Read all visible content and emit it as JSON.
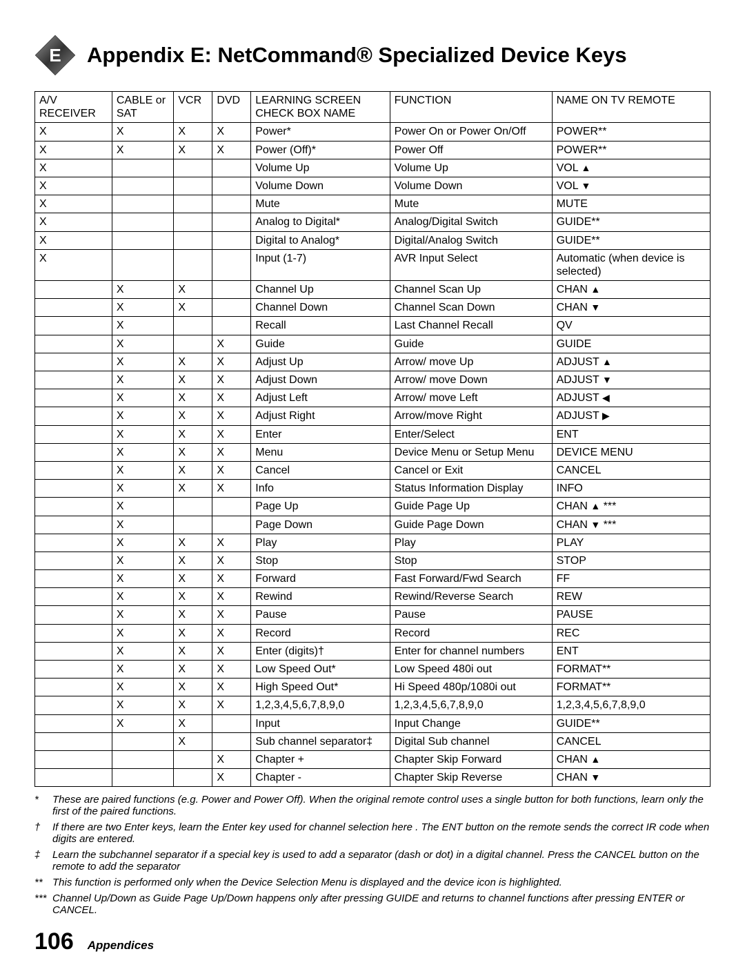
{
  "appendix_letter": "E",
  "title": "Appendix E:  NetCommand® Specialized Device Keys",
  "headers": {
    "c1": "A/V RECEIVER",
    "c2": "CABLE or  SAT",
    "c3": "VCR",
    "c4": "DVD",
    "c5": "LEARNING SCREEN CHECK BOX NAME",
    "c6": "FUNCTION",
    "c7": "NAME ON TV REMOTE"
  },
  "rows": [
    {
      "c": [
        "X",
        "X",
        "X",
        "X",
        "Power*",
        "Power On or Power On/Off",
        "POWER**"
      ]
    },
    {
      "c": [
        "X",
        "X",
        "X",
        "X",
        "Power (Off)*",
        "Power Off",
        "POWER**"
      ]
    },
    {
      "c": [
        "X",
        "",
        "",
        "",
        "Volume Up",
        "Volume Up",
        "VOL ▲"
      ]
    },
    {
      "c": [
        "X",
        "",
        "",
        "",
        "Volume Down",
        "Volume Down",
        "VOL ▼"
      ]
    },
    {
      "c": [
        "X",
        "",
        "",
        "",
        "Mute",
        "Mute",
        "MUTE"
      ]
    },
    {
      "c": [
        "X",
        "",
        "",
        "",
        "Analog to Digital*",
        "Analog/Digital Switch",
        "GUIDE**"
      ]
    },
    {
      "c": [
        "X",
        "",
        "",
        "",
        "Digital to Analog*",
        "Digital/Analog Switch",
        "GUIDE**"
      ]
    },
    {
      "c": [
        "X",
        "",
        "",
        "",
        "Input (1-7)",
        "AVR Input Select",
        "Automatic (when device is selected)"
      ]
    },
    {
      "c": [
        "",
        "X",
        "X",
        "",
        "Channel Up",
        "Channel Scan Up",
        "CHAN ▲"
      ]
    },
    {
      "c": [
        "",
        "X",
        "X",
        "",
        "Channel Down",
        "Channel Scan Down",
        "CHAN ▼"
      ]
    },
    {
      "c": [
        "",
        "X",
        "",
        "",
        "Recall",
        "Last Channel Recall",
        "QV"
      ]
    },
    {
      "c": [
        "",
        "X",
        "",
        "X",
        "Guide",
        "Guide",
        "GUIDE"
      ]
    },
    {
      "c": [
        "",
        "X",
        "X",
        "X",
        "Adjust Up",
        "Arrow/ move Up",
        "ADJUST ▲"
      ]
    },
    {
      "c": [
        "",
        "X",
        "X",
        "X",
        "Adjust Down",
        "Arrow/ move Down",
        "ADJUST ▼"
      ]
    },
    {
      "c": [
        "",
        "X",
        "X",
        "X",
        "Adjust Left",
        "Arrow/ move Left",
        "ADJUST ◀"
      ]
    },
    {
      "c": [
        "",
        "X",
        "X",
        "X",
        "Adjust Right",
        "Arrow/move Right",
        "ADJUST ▶"
      ]
    },
    {
      "c": [
        "",
        "X",
        "X",
        "X",
        "Enter",
        "Enter/Select",
        "ENT"
      ]
    },
    {
      "c": [
        "",
        "X",
        "X",
        "X",
        "Menu",
        "Device Menu or Setup Menu",
        "DEVICE MENU"
      ]
    },
    {
      "c": [
        "",
        "X",
        "X",
        "X",
        "Cancel",
        "Cancel or Exit",
        "CANCEL"
      ]
    },
    {
      "c": [
        "",
        "X",
        "X",
        "X",
        "Info",
        "Status Information Display",
        "INFO"
      ]
    },
    {
      "c": [
        "",
        "X",
        "",
        "",
        "Page Up",
        "Guide Page Up",
        "CHAN ▲ ***"
      ]
    },
    {
      "c": [
        "",
        "X",
        "",
        "",
        "Page Down",
        "Guide Page Down",
        "CHAN ▼ ***"
      ]
    },
    {
      "c": [
        "",
        "X",
        "X",
        "X",
        "Play",
        "Play",
        "PLAY"
      ]
    },
    {
      "c": [
        "",
        "X",
        "X",
        "X",
        "Stop",
        "Stop",
        "STOP"
      ]
    },
    {
      "c": [
        "",
        "X",
        "X",
        "X",
        "Forward",
        "Fast Forward/Fwd Search",
        "FF"
      ]
    },
    {
      "c": [
        "",
        "X",
        "X",
        "X",
        "Rewind",
        "Rewind/Reverse Search",
        "REW"
      ]
    },
    {
      "c": [
        "",
        "X",
        "X",
        "X",
        "Pause",
        "Pause",
        "PAUSE"
      ]
    },
    {
      "c": [
        "",
        "X",
        "X",
        "X",
        "Record",
        "Record",
        "REC"
      ]
    },
    {
      "c": [
        "",
        "X",
        "X",
        "X",
        "Enter (digits)†",
        "Enter for channel numbers",
        "ENT"
      ]
    },
    {
      "c": [
        "",
        "X",
        "X",
        "X",
        "Low Speed Out*",
        "Low Speed 480i out",
        "FORMAT**"
      ]
    },
    {
      "c": [
        "",
        "X",
        "X",
        "X",
        "High Speed Out*",
        "Hi Speed 480p/1080i out",
        "FORMAT**"
      ]
    },
    {
      "c": [
        "",
        "X",
        "X",
        "X",
        "1,2,3,4,5,6,7,8,9,0",
        "1,2,3,4,5,6,7,8,9,0",
        "1,2,3,4,5,6,7,8,9,0"
      ]
    },
    {
      "c": [
        "",
        "X",
        "X",
        "",
        "Input",
        "Input Change",
        "GUIDE**"
      ]
    },
    {
      "c": [
        "",
        "",
        "X",
        "",
        "Sub channel separator‡",
        "Digital Sub channel",
        "CANCEL"
      ]
    },
    {
      "c": [
        "",
        "",
        "",
        "X",
        "Chapter +",
        "Chapter Skip Forward",
        "CHAN ▲"
      ]
    },
    {
      "c": [
        "",
        "",
        "",
        "X",
        "Chapter -",
        "Chapter Skip Reverse",
        "CHAN ▼"
      ]
    }
  ],
  "notes": [
    {
      "sym": "*",
      "txt": "These are paired functions (e.g. Power and Power Off).  When the original remote control uses a single button for both functions, learn only the first of the paired functions."
    },
    {
      "sym": "†",
      "txt": "If there are two Enter keys, learn the Enter key used for channel selection here .  The ENT button on the remote sends the correct IR code when digits are entered."
    },
    {
      "sym": "‡",
      "txt": "Learn the subchannel separator if a special key is used to add a separator (dash or dot) in a digital channel.  Press the CANCEL button on the remote to add the separator"
    },
    {
      "sym": "**",
      "txt": "This function is performed only when the Device Selection Menu is displayed and the device icon is highlighted."
    },
    {
      "sym": "***",
      "txt": "Channel Up/Down as Guide Page Up/Down happens only after pressing GUIDE and returns to channel functions after pressing ENTER or CANCEL."
    }
  ],
  "page_number": "106",
  "section_label": "Appendices"
}
